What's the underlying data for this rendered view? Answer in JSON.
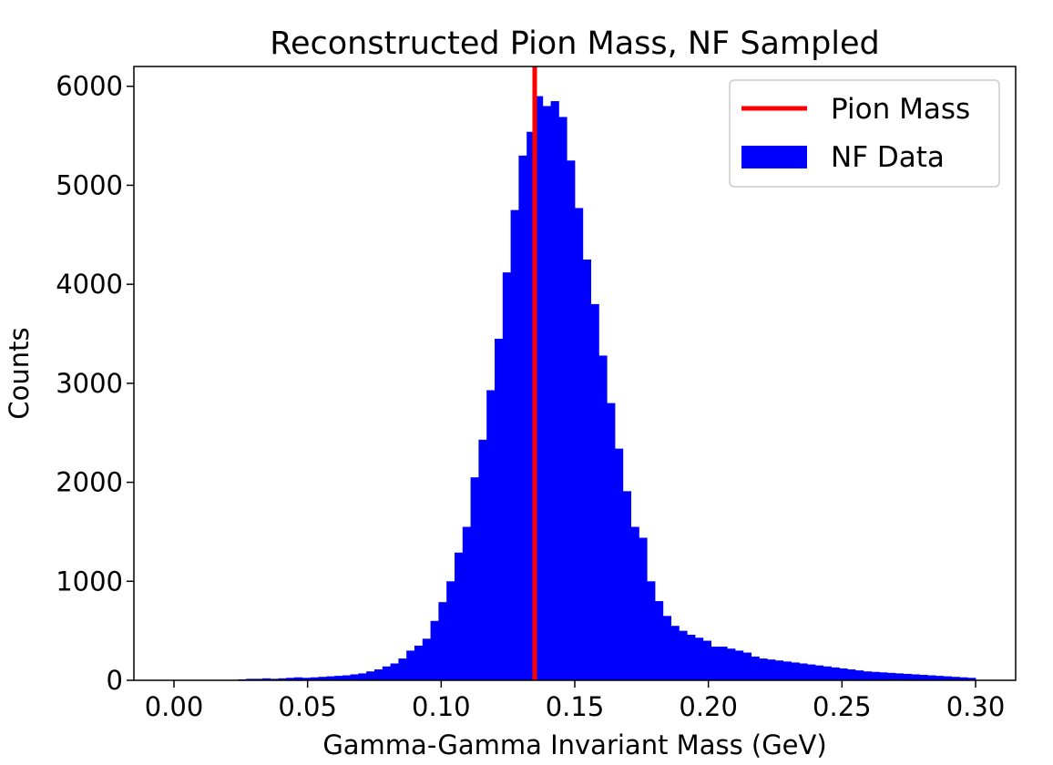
{
  "chart_data": {
    "type": "bar",
    "title": "Reconstructed Pion Mass, NF Sampled",
    "xlabel": "Gamma-Gamma Invariant Mass (GeV)",
    "ylabel": "Counts",
    "xlim": [
      -0.015,
      0.315
    ],
    "ylim": [
      0,
      6200
    ],
    "xticks": [
      0.0,
      0.05,
      0.1,
      0.15,
      0.2,
      0.25,
      0.3
    ],
    "xtick_labels": [
      "0.00",
      "0.05",
      "0.10",
      "0.15",
      "0.20",
      "0.25",
      "0.30"
    ],
    "yticks": [
      0,
      1000,
      2000,
      3000,
      4000,
      5000,
      6000
    ],
    "ytick_labels": [
      "0",
      "1000",
      "2000",
      "3000",
      "4000",
      "5000",
      "6000"
    ],
    "grid": false,
    "legend_position": "top-right",
    "reference_line": {
      "name": "Pion Mass",
      "x": 0.135,
      "color": "#ff0000"
    },
    "series": [
      {
        "name": "NF Data",
        "color": "#0000ff",
        "bin_start": 0.0,
        "bin_width": 0.003,
        "values": [
          0,
          0,
          0,
          0,
          0,
          0,
          0,
          5,
          10,
          15,
          15,
          20,
          15,
          20,
          25,
          30,
          25,
          30,
          35,
          40,
          45,
          50,
          60,
          70,
          90,
          110,
          140,
          170,
          220,
          300,
          350,
          420,
          600,
          790,
          1000,
          1290,
          1550,
          2050,
          2430,
          2930,
          3450,
          4120,
          4750,
          5300,
          5540,
          5900,
          5800,
          5850,
          5690,
          5250,
          4770,
          4250,
          3800,
          3280,
          2800,
          2340,
          1910,
          1550,
          1440,
          1000,
          800,
          650,
          550,
          500,
          460,
          430,
          400,
          340,
          340,
          320,
          300,
          280,
          240,
          220,
          210,
          200,
          190,
          180,
          170,
          160,
          150,
          140,
          130,
          120,
          110,
          100,
          90,
          85,
          80,
          75,
          70,
          65,
          60,
          55,
          50,
          45,
          40,
          35,
          30,
          25
        ]
      }
    ]
  }
}
